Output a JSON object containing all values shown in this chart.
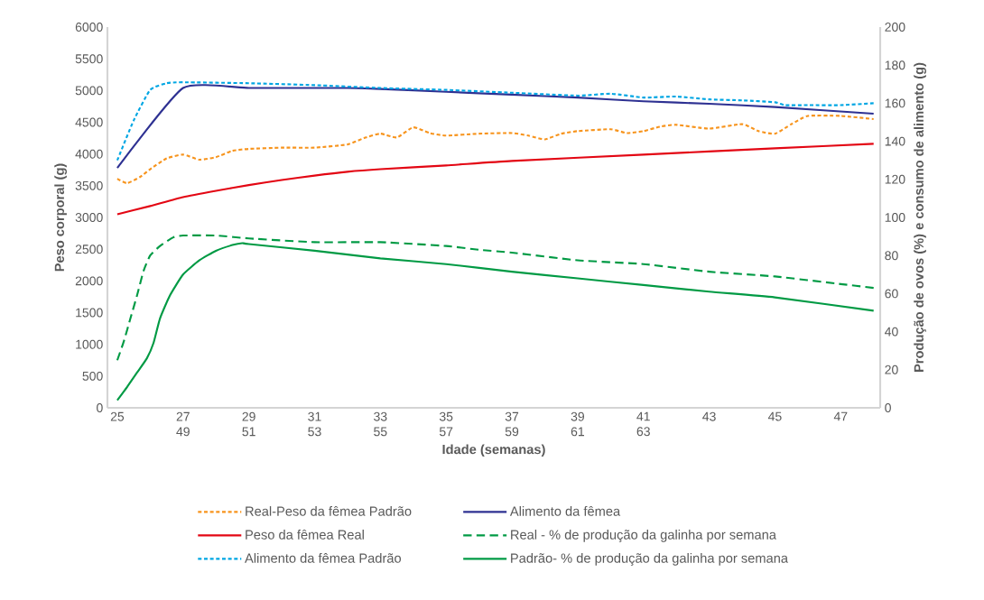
{
  "chart_data": {
    "type": "line",
    "xlabel": "Idade (semanas)",
    "ylabel": "Peso corporal (g)",
    "y2label": "Produção de ovos (%) e consumo de alimento (g)",
    "xlim": [
      24.7,
      48.2
    ],
    "xticks": [
      25,
      {
        "value": 27,
        "label": "27 49"
      },
      {
        "value": 29,
        "label": "29 51"
      },
      {
        "value": 31,
        "label": "31 53"
      },
      {
        "value": 33,
        "label": "33 55"
      },
      {
        "value": 35,
        "label": "35 57"
      },
      {
        "value": 37,
        "label": "37 59"
      },
      {
        "value": 39,
        "label": "39 61"
      },
      {
        "value": 41,
        "label": "41 63"
      },
      43,
      45,
      47
    ],
    "ylim": [
      0,
      6000
    ],
    "yticks": [
      0,
      500,
      1000,
      1500,
      2000,
      2500,
      3000,
      3500,
      4000,
      4500,
      5000,
      5500,
      6000
    ],
    "y2lim": [
      0,
      200
    ],
    "y2ticks": [
      0,
      20,
      40,
      60,
      80,
      100,
      120,
      140,
      160,
      180,
      200
    ],
    "legend": "bottom",
    "marker": "none",
    "series": [
      {
        "name": "Real-Peso da fêmea Padrão",
        "color": "#f7941d",
        "line_style": "dotted",
        "x": [
          25,
          25.3,
          25.7,
          26,
          26.5,
          27,
          27.5,
          28,
          28.5,
          29,
          30,
          31,
          32,
          32.5,
          33,
          33.5,
          34,
          34.5,
          35,
          36,
          37,
          37.5,
          38,
          38.5,
          39,
          40,
          40.5,
          41,
          41.5,
          42,
          43,
          44,
          44.5,
          45,
          45.5,
          46,
          47,
          48
        ],
        "values": [
          3610,
          3540,
          3640,
          3760,
          3930,
          3990,
          3910,
          3950,
          4050,
          4080,
          4100,
          4100,
          4150,
          4250,
          4320,
          4260,
          4420,
          4330,
          4290,
          4320,
          4330,
          4290,
          4230,
          4320,
          4360,
          4390,
          4330,
          4360,
          4430,
          4460,
          4400,
          4470,
          4360,
          4320,
          4470,
          4600,
          4600,
          4550
        ]
      },
      {
        "name": "Alimento da fêmea",
        "color": "#2e3192",
        "line_style": "solid",
        "axis": "y2",
        "x": [
          25,
          27,
          29,
          31,
          32,
          33,
          35,
          37,
          39,
          41,
          43,
          45,
          48
        ],
        "values": [
          126,
          168,
          168,
          168,
          168,
          167.5,
          166,
          164.5,
          163,
          161,
          159.7,
          158,
          154.5
        ]
      },
      {
        "name": "Peso da fêmea Real",
        "color": "#e30613",
        "line_style": "solid",
        "x": [
          25,
          26,
          27,
          28,
          29,
          30,
          31,
          32,
          33,
          35,
          37,
          41,
          45,
          48
        ],
        "values": [
          3050,
          3180,
          3320,
          3420,
          3510,
          3590,
          3660,
          3720,
          3760,
          3820,
          3890,
          3990,
          4090,
          4160
        ]
      },
      {
        "name": "Real - % de produção da galinha por semana",
        "color": "#009a44",
        "line_style": "dashed",
        "axis": "y2",
        "x": [
          25,
          25.2,
          25.4,
          25.6,
          25.8,
          26,
          26.3,
          26.7,
          27,
          28,
          29,
          31,
          33,
          35,
          36,
          37,
          39,
          41,
          43,
          45,
          47,
          48
        ],
        "values": [
          25,
          35,
          47,
          59,
          72,
          80,
          85,
          89.5,
          90.5,
          90.5,
          89,
          87,
          87,
          85,
          83,
          81.5,
          77.5,
          75.5,
          71.5,
          69,
          65,
          63
        ]
      },
      {
        "name": "Alimento da fêmea Padrão",
        "color": "#00a6e3",
        "line_style": "dotted",
        "axis": "y2",
        "x": [
          25,
          25.5,
          26,
          26.5,
          27,
          29,
          31,
          33,
          35,
          37,
          39,
          40,
          41,
          42,
          43,
          44,
          45,
          45.3,
          46,
          47,
          48
        ],
        "values": [
          130,
          151,
          167,
          170.5,
          171,
          170.5,
          169.5,
          168,
          167,
          165.5,
          164,
          165,
          163,
          163.5,
          162,
          161.5,
          160.5,
          159,
          159,
          159,
          160
        ]
      },
      {
        "name": "Padrão- % de produção da galinha por semana",
        "color": "#009a44",
        "line_style": "solid",
        "axis": "y2",
        "x": [
          25,
          25.3,
          25.6,
          25.9,
          26.1,
          26.3,
          26.6,
          27,
          27.5,
          28,
          28.5,
          28.8,
          29,
          31,
          33,
          35,
          37,
          39,
          41,
          43,
          45,
          48
        ],
        "values": [
          4,
          11,
          18.5,
          26,
          34,
          47,
          59,
          70,
          77.5,
          82.5,
          85.5,
          86.5,
          86,
          82.5,
          78.5,
          75.5,
          71.5,
          68,
          64.5,
          61,
          58,
          51
        ]
      }
    ]
  }
}
